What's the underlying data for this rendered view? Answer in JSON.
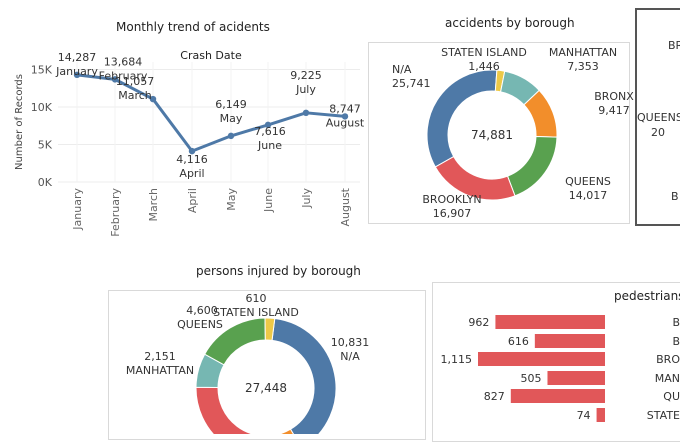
{
  "line_chart": {
    "title": "Monthly trend of acidents",
    "subtitle": "Crash Date",
    "ylabel": "Number of Records",
    "y_ticks": [
      "0K",
      "5K",
      "10K",
      "15K"
    ],
    "color": "#4e79a7"
  },
  "borough_chart": {
    "title": "accidents by borough",
    "total": "74,881"
  },
  "injured_chart": {
    "title": "persons injured by borough",
    "total": "27,448"
  },
  "pedestrians_chart": {
    "title": "pedestrians",
    "bar_color": "#e15759"
  },
  "partial_panel": {
    "labels": [
      "BR",
      "QUEENS",
      "20",
      "B"
    ]
  },
  "chart_data": [
    {
      "type": "line",
      "title": "Monthly trend of acidents",
      "subtitle": "Crash Date",
      "ylabel": "Number of Records",
      "xlabel": "",
      "categories": [
        "January",
        "February",
        "March",
        "April",
        "May",
        "June",
        "July",
        "August"
      ],
      "values": [
        14287,
        13684,
        11057,
        4116,
        6149,
        7616,
        9225,
        8747
      ],
      "value_labels": [
        "14,287",
        "13,684",
        "11,057",
        "4,116",
        "6,149",
        "7,616",
        "9,225",
        "8,747"
      ],
      "ylim": [
        0,
        16000
      ],
      "grid": true
    },
    {
      "type": "pie",
      "title": "accidents by borough",
      "categories": [
        "N/A",
        "STATEN ISLAND",
        "MANHATTAN",
        "BRONX",
        "QUEENS",
        "BROOKLYN"
      ],
      "values": [
        25741,
        1446,
        7353,
        9417,
        14017,
        16907
      ],
      "value_labels": [
        "25,741",
        "1,446",
        "7,353",
        "9,417",
        "14,017",
        "16,907"
      ],
      "colors": [
        "#4e79a7",
        "#edc948",
        "#76b7b2",
        "#f28e2b",
        "#59a14f",
        "#e15759"
      ],
      "total_label": "74,881"
    },
    {
      "type": "pie",
      "title": "persons injured by borough",
      "categories": [
        "N/A",
        "QUEENS",
        "STATEN ISLAND",
        "MANHATTAN"
      ],
      "values": [
        10831,
        4600,
        610,
        2151
      ],
      "value_labels": [
        "10,831",
        "4,600",
        "610",
        "2,151"
      ],
      "colors": [
        "#4e79a7",
        "#59a14f",
        "#edc948",
        "#76b7b2",
        "#e15759",
        "#f28e2b"
      ],
      "total_label": "27,448"
    },
    {
      "type": "bar",
      "title": "pedestrians",
      "categories": [
        "B",
        "B",
        "BRO",
        "MAN",
        "QU",
        "STATE"
      ],
      "values": [
        962,
        616,
        1115,
        505,
        827,
        74
      ],
      "value_labels": [
        "962",
        "616",
        "1,115",
        "505",
        "827",
        "74"
      ],
      "colors": [
        "#e15759"
      ]
    }
  ]
}
